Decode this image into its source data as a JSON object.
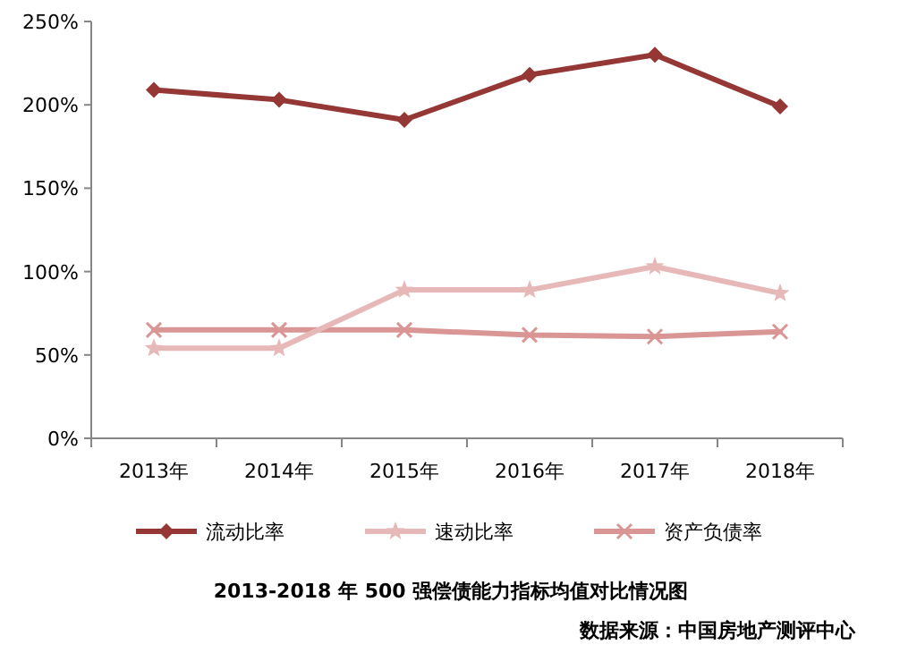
{
  "chart_data": {
    "type": "line",
    "title": "2013-2018 年 500 强偿债能力指标均值对比情况图",
    "annotations": [
      "数据来源：中国房地产测评中心"
    ],
    "categories": [
      "2013年",
      "2014年",
      "2015年",
      "2016年",
      "2017年",
      "2018年"
    ],
    "series": [
      {
        "name": "流动比率",
        "color": "#953735",
        "marker": "diamond",
        "values": [
          209,
          203,
          191,
          218,
          230,
          199
        ]
      },
      {
        "name": "速动比率",
        "color": "#e6b9b8",
        "marker": "star",
        "values": [
          54,
          54,
          89,
          89,
          103,
          87
        ]
      },
      {
        "name": "资产负债率",
        "color": "#d99694",
        "marker": "cross",
        "values": [
          65,
          65,
          65,
          62,
          61,
          64
        ]
      }
    ],
    "ylim": [
      0,
      250
    ],
    "yticks": [
      {
        "value": 0,
        "label": "0%"
      },
      {
        "value": 50,
        "label": "50%"
      },
      {
        "value": 100,
        "label": "100%"
      },
      {
        "value": 150,
        "label": "150%"
      },
      {
        "value": 200,
        "label": "200%"
      },
      {
        "value": 250,
        "label": "250%"
      }
    ],
    "grid": false,
    "legend": "bottom",
    "line_style": "solid"
  }
}
